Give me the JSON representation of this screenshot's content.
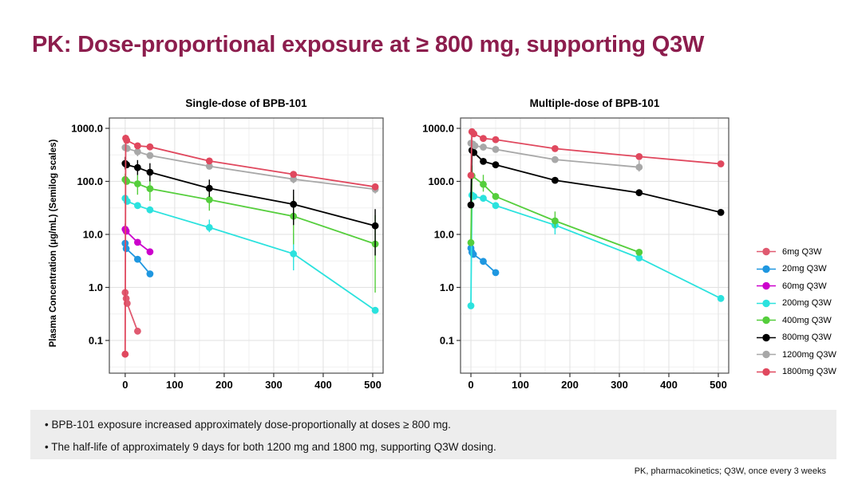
{
  "slide": {
    "title": "PK: Dose-proportional exposure at ≥ 800 mg, supporting Q3W",
    "title_color": "#8C1D4D",
    "bullets": [
      "• BPB-101 exposure increased approximately dose-proportionally at doses ≥ 800 mg.",
      "• The half-life of approximately 9 days for both 1200 mg and 1800 mg, supporting Q3W dosing."
    ],
    "footnote": "PK, pharmacokinetics; Q3W, once every 3 weeks"
  },
  "legend": {
    "position": "right",
    "items": [
      {
        "label": "6mg Q3W",
        "color": "#E05A70"
      },
      {
        "label": "20mg Q3W",
        "color": "#1F97E0"
      },
      {
        "label": "60mg Q3W",
        "color": "#CC00CC"
      },
      {
        "label": "200mg Q3W",
        "color": "#2BE2DE"
      },
      {
        "label": "400mg Q3W",
        "color": "#55CE3C"
      },
      {
        "label": "800mg Q3W",
        "color": "#000000"
      },
      {
        "label": "1200mg Q3W",
        "color": "#A8A8A8"
      },
      {
        "label": "1800mg Q3W",
        "color": "#E0485E"
      }
    ]
  },
  "chart_data": [
    {
      "type": "line",
      "title": "Single-dose of BPB-101",
      "xlabel": "",
      "ylabel": "Plasma Concentration (μg/mL) (Semilog scales)",
      "grid": true,
      "x_axis": {
        "ticks": [
          0,
          100,
          200,
          300,
          400,
          500
        ],
        "minor": [
          50,
          150,
          250,
          350,
          450
        ],
        "lim": [
          -32,
          521
        ]
      },
      "y_axis": {
        "scale": "log10",
        "ticks": [
          1000,
          100,
          10,
          1,
          0.1
        ],
        "tick_labels": [
          "1000.0",
          "100.0",
          "10.0",
          "1.0",
          "0.1"
        ],
        "lim_log10": [
          -1.617,
          3.195
        ]
      },
      "series": [
        {
          "name": "6mg Q3W",
          "color": "#E05A70",
          "points": [
            [
              0,
              0.8
            ],
            [
              2,
              0.62
            ],
            [
              4,
              0.5
            ],
            [
              25,
              0.15
            ]
          ],
          "errors": []
        },
        {
          "name": "20mg Q3W",
          "color": "#1F97E0",
          "points": [
            [
              0,
              6.8
            ],
            [
              2,
              5.4
            ],
            [
              25,
              3.4
            ],
            [
              50,
              1.8
            ]
          ],
          "errors": []
        },
        {
          "name": "60mg Q3W",
          "color": "#CC00CC",
          "points": [
            [
              0,
              12.5
            ],
            [
              2,
              11.5
            ],
            [
              25,
              7.1
            ],
            [
              50,
              4.7
            ]
          ],
          "errors": [
            [
              0,
              9.8,
              16
            ]
          ]
        },
        {
          "name": "200mg Q3W",
          "color": "#2BE2DE",
          "points": [
            [
              0,
              48
            ],
            [
              4,
              42
            ],
            [
              25,
              35
            ],
            [
              50,
              29
            ],
            [
              170,
              13.5
            ],
            [
              340,
              4.3
            ],
            [
              505,
              0.37
            ]
          ],
          "errors": [
            [
              170,
              11,
              19
            ],
            [
              340,
              2.1,
              10.5
            ]
          ]
        },
        {
          "name": "400mg Q3W",
          "color": "#55CE3C",
          "points": [
            [
              0,
              108
            ],
            [
              3,
              100
            ],
            [
              25,
              90
            ],
            [
              50,
              73
            ],
            [
              170,
              45
            ],
            [
              340,
              22
            ],
            [
              505,
              6.6
            ]
          ],
          "errors": [
            [
              0,
              86,
              140
            ],
            [
              25,
              56,
              132
            ],
            [
              50,
              43,
              112
            ],
            [
              170,
              28,
              70
            ],
            [
              340,
              6.5,
              52
            ],
            [
              505,
              0.8,
              23
            ]
          ]
        },
        {
          "name": "800mg Q3W",
          "color": "#000000",
          "points": [
            [
              0,
              218
            ],
            [
              3,
              205
            ],
            [
              25,
              182
            ],
            [
              50,
              149
            ],
            [
              170,
              74
            ],
            [
              340,
              37
            ],
            [
              505,
              14.5
            ]
          ],
          "errors": [
            [
              0,
              168,
              290
            ],
            [
              25,
              132,
              252
            ],
            [
              50,
              100,
              220
            ],
            [
              170,
              51,
              108
            ],
            [
              340,
              15,
              70
            ],
            [
              505,
              4,
              30
            ]
          ]
        },
        {
          "name": "1200mg Q3W",
          "color": "#A8A8A8",
          "points": [
            [
              0,
              435
            ],
            [
              4,
              418
            ],
            [
              25,
              362
            ],
            [
              50,
              308
            ],
            [
              170,
              193
            ],
            [
              340,
              110
            ],
            [
              505,
              71
            ]
          ],
          "errors": [
            [
              25,
              298,
              430
            ],
            [
              340,
              92,
              138
            ],
            [
              505,
              59,
              92
            ]
          ]
        },
        {
          "name": "1800mg Q3W",
          "color": "#E0485E",
          "points": [
            [
              0,
              0.055
            ],
            [
              1,
              650
            ],
            [
              3,
              595
            ],
            [
              25,
              468
            ],
            [
              50,
              448
            ],
            [
              170,
              242
            ],
            [
              340,
              136
            ],
            [
              505,
              79
            ]
          ],
          "errors": [
            [
              1,
              545,
              760
            ]
          ]
        }
      ]
    },
    {
      "type": "line",
      "title": "Multiple-dose of BPB-101",
      "xlabel": "",
      "ylabel": "",
      "grid": true,
      "x_axis": {
        "ticks": [
          0,
          100,
          200,
          300,
          400,
          500
        ],
        "minor": [
          50,
          150,
          250,
          350,
          450
        ],
        "lim": [
          -21,
          521
        ]
      },
      "y_axis": {
        "scale": "log10",
        "ticks": [
          1000,
          100,
          10,
          1,
          0.1
        ],
        "tick_labels": [
          "1000.0",
          "100.0",
          "10.0",
          "1.0",
          "0.1"
        ],
        "lim_log10": [
          -1.617,
          3.195
        ]
      },
      "series": [
        {
          "name": "20mg Q3W",
          "color": "#1F97E0",
          "points": [
            [
              0,
              5.5
            ],
            [
              2,
              4.6
            ],
            [
              5,
              4.2
            ],
            [
              25,
              3.1
            ],
            [
              50,
              1.9
            ]
          ],
          "errors": []
        },
        {
          "name": "200mg Q3W",
          "color": "#2BE2DE",
          "points": [
            [
              0,
              0.45
            ],
            [
              2,
              55
            ],
            [
              6,
              52
            ],
            [
              25,
              48
            ],
            [
              50,
              35
            ],
            [
              170,
              15
            ],
            [
              340,
              3.6
            ],
            [
              505,
              0.62
            ]
          ],
          "errors": [
            [
              170,
              10,
              21
            ]
          ]
        },
        {
          "name": "400mg Q3W",
          "color": "#55CE3C",
          "points": [
            [
              0,
              7
            ],
            [
              2,
              128
            ],
            [
              25,
              88
            ],
            [
              50,
              52
            ],
            [
              170,
              18
            ],
            [
              340,
              4.6
            ]
          ],
          "errors": [
            [
              2,
              86,
              200
            ],
            [
              25,
              64,
              133
            ],
            [
              170,
              13.5,
              27
            ]
          ]
        },
        {
          "name": "800mg Q3W",
          "color": "#000000",
          "points": [
            [
              0,
              36
            ],
            [
              2,
              385
            ],
            [
              6,
              350
            ],
            [
              25,
              238
            ],
            [
              50,
              205
            ],
            [
              170,
              105
            ],
            [
              340,
              61
            ],
            [
              505,
              26
            ]
          ],
          "errors": [
            [
              2,
              325,
              470
            ]
          ]
        },
        {
          "name": "1200mg Q3W",
          "color": "#A8A8A8",
          "points": [
            [
              0,
              525
            ],
            [
              4,
              505
            ],
            [
              8,
              468
            ],
            [
              25,
              442
            ],
            [
              50,
              400
            ],
            [
              170,
              258
            ],
            [
              340,
              185
            ]
          ],
          "errors": [
            [
              8,
              415,
              560
            ],
            [
              25,
              382,
              515
            ],
            [
              340,
              153,
              248
            ]
          ]
        },
        {
          "name": "1800mg Q3W",
          "color": "#E0485E",
          "points": [
            [
              0,
              130
            ],
            [
              2,
              865
            ],
            [
              6,
              790
            ],
            [
              25,
              645
            ],
            [
              50,
              612
            ],
            [
              170,
              415
            ],
            [
              340,
              293
            ],
            [
              505,
              214
            ]
          ],
          "errors": [
            [
              2,
              770,
              960
            ]
          ]
        }
      ]
    }
  ]
}
